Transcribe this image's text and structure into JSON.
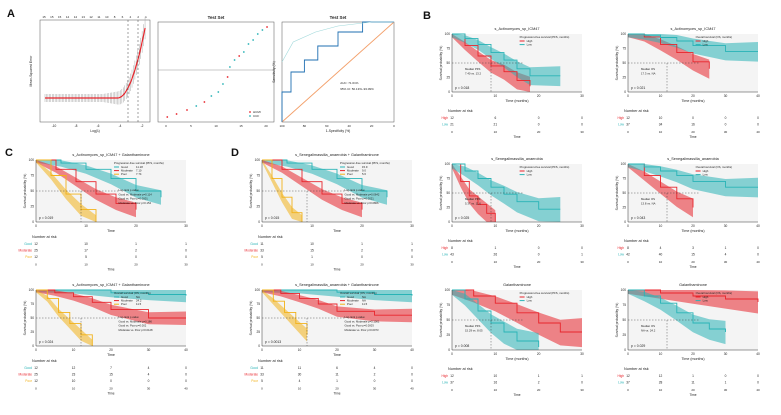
{
  "panel_labels": {
    "a": "A",
    "b": "B",
    "c": "C",
    "d": "D"
  },
  "panel_a": {
    "lasso_xlabel": "Log(λ)",
    "lasso_ylabel": "Mean-Squared Error",
    "lasso_top_ticks": [
      "15",
      "15",
      "15",
      "14",
      "14",
      "13",
      "12",
      "11",
      "10",
      "8",
      "6",
      "4",
      "2",
      "1"
    ],
    "lasso_x_ticks": [
      "-10",
      "-8",
      "-6",
      "-4",
      "-2"
    ],
    "test_title_1": "Test Set",
    "test_title_2": "Test Set",
    "legend_hcmi": "HCMI",
    "legend_ccf": "CCF",
    "roc_xlabel": "1-Specificity (%)",
    "roc_ylabel": "Sensitivity (%)",
    "roc_auc": "AUC: 71.61%",
    "roc_ci": "95% CI: 50.13%–93.09%",
    "roc_x_ticks": [
      "100",
      "80",
      "60",
      "40",
      "20",
      "0"
    ]
  },
  "km_common": {
    "y_label": "Survival probability (%)",
    "x_label": "Time (months)",
    "x_label_short": "Time",
    "number_at_risk": "Number at risk",
    "y_ticks": [
      "100",
      "75",
      "50",
      "25",
      "0"
    ]
  },
  "chart_data": [
    {
      "type": "line",
      "panel": "B",
      "title": "s_Actinomyces_sp_ICM47",
      "legend_title": "Progression-free survival (PFS, months)",
      "series": [
        {
          "name": "High",
          "color": "#e8252c",
          "x": [
            0,
            3,
            6,
            9,
            12,
            15,
            18
          ],
          "values": [
            100,
            80,
            62,
            45,
            35,
            20,
            10
          ]
        },
        {
          "name": "Low",
          "color": "#29b3b6",
          "x": [
            0,
            3,
            6,
            9,
            12,
            15,
            18,
            25
          ],
          "values": [
            100,
            92,
            82,
            68,
            55,
            40,
            28,
            28
          ]
        }
      ],
      "median_text": "Median PFS\n7.40 vs. 13.2",
      "p_value": "p = 0.018",
      "risk_table": {
        "groups": [
          "High",
          "Low"
        ],
        "times": [
          "0",
          "10",
          "20",
          "30"
        ],
        "values": [
          [
            "12",
            "6",
            "0",
            "0"
          ],
          [
            "21",
            "21",
            "0",
            "0"
          ]
        ]
      }
    },
    {
      "type": "line",
      "panel": "B",
      "title": "s_Actinomyces_sp_ICM47",
      "legend_title": "Overall survival (OS, months)",
      "series": [
        {
          "name": "High",
          "color": "#e8252c",
          "x": [
            0,
            5,
            10,
            15,
            20,
            25
          ],
          "values": [
            100,
            95,
            82,
            68,
            52,
            40
          ]
        },
        {
          "name": "Low",
          "color": "#29b3b6",
          "x": [
            0,
            5,
            10,
            15,
            20,
            30,
            40
          ],
          "values": [
            100,
            98,
            94,
            88,
            80,
            70,
            70
          ]
        }
      ],
      "median_text": "Median OS\n17.3 vs. NA",
      "p_value": "p = 0.021",
      "risk_table": {
        "groups": [
          "High",
          "Low"
        ],
        "times": [
          "0",
          "10",
          "20",
          "30",
          "40"
        ],
        "values": [
          [
            "12",
            "10",
            "0",
            "0",
            "0"
          ],
          [
            "37",
            "34",
            "16",
            "0",
            "0"
          ]
        ]
      }
    },
    {
      "type": "line",
      "panel": "B",
      "title": "s_Senegalimassilia_anaerobia",
      "legend_title": "Progression-free survival (PFS, months)",
      "series": [
        {
          "name": "High",
          "color": "#e8252c",
          "x": [
            0,
            2,
            4,
            6,
            8,
            10
          ],
          "values": [
            100,
            70,
            45,
            30,
            15,
            0
          ]
        },
        {
          "name": "Low",
          "color": "#29b3b6",
          "x": [
            0,
            3,
            6,
            9,
            12,
            15,
            20,
            25
          ],
          "values": [
            100,
            88,
            75,
            60,
            48,
            35,
            22,
            22
          ]
        }
      ],
      "median_text": "Median PFS\n5.37 vs. 11.6",
      "p_value": "p = 0.025",
      "risk_table": {
        "groups": [
          "High",
          "Low"
        ],
        "times": [
          "0",
          "10",
          "20",
          "30"
        ],
        "values": [
          [
            "8",
            "1",
            "0",
            "0"
          ],
          [
            "43",
            "26",
            "0",
            "1"
          ]
        ]
      }
    },
    {
      "type": "line",
      "panel": "B",
      "title": "s_Senegalimassilia_anaerobia",
      "legend_title": "Overall survival (OS, months)",
      "series": [
        {
          "name": "High",
          "color": "#e8252c",
          "x": [
            0,
            5,
            10,
            15,
            20
          ],
          "values": [
            100,
            80,
            60,
            40,
            25
          ]
        },
        {
          "name": "Low",
          "color": "#29b3b6",
          "x": [
            0,
            5,
            10,
            15,
            20,
            30,
            40
          ],
          "values": [
            100,
            95,
            88,
            80,
            70,
            60,
            60
          ]
        }
      ],
      "median_text": "Median OS\n13.8 vs. NA",
      "p_value": "p = 0.043",
      "risk_table": {
        "groups": [
          "High",
          "Low"
        ],
        "times": [
          "0",
          "10",
          "20",
          "30",
          "40"
        ],
        "values": [
          [
            "8",
            "4",
            "3",
            "1",
            "0"
          ],
          [
            "42",
            "40",
            "15",
            "4",
            "0"
          ]
        ]
      }
    },
    {
      "type": "line",
      "panel": "B",
      "title": "Galanthaminone",
      "legend_title": "Progression-free survival (PFS, months)",
      "series": [
        {
          "name": "High",
          "color": "#e8252c",
          "x": [
            0,
            5,
            10,
            15,
            20,
            25,
            30
          ],
          "values": [
            100,
            90,
            78,
            62,
            45,
            30,
            30
          ]
        },
        {
          "name": "Low",
          "color": "#29b3b6",
          "x": [
            0,
            3,
            6,
            9,
            12,
            15,
            20
          ],
          "values": [
            100,
            85,
            65,
            45,
            30,
            15,
            5
          ]
        }
      ],
      "median_text": "Median PFS\n15.29 vs. 8.05",
      "p_value": "p = 0.008",
      "risk_table": {
        "groups": [
          "High",
          "Low"
        ],
        "times": [
          "0",
          "10",
          "20",
          "30"
        ],
        "values": [
          [
            "12",
            "10",
            "1",
            "1"
          ],
          [
            "37",
            "16",
            "2",
            "0"
          ]
        ]
      }
    },
    {
      "type": "line",
      "panel": "B",
      "title": "Galanthaminone",
      "legend_title": "Overall survival (OS, months)",
      "series": [
        {
          "name": "High",
          "color": "#e8252c",
          "x": [
            0,
            10,
            20,
            30,
            40
          ],
          "values": [
            100,
            95,
            90,
            85,
            80
          ]
        },
        {
          "name": "Low",
          "color": "#29b3b6",
          "x": [
            0,
            5,
            10,
            15,
            20,
            25,
            30
          ],
          "values": [
            100,
            90,
            78,
            62,
            45,
            35,
            30
          ]
        }
      ],
      "median_text": "Median OS\nNA vs. 24.2",
      "p_value": "p = 0.029",
      "risk_table": {
        "groups": [
          "High",
          "Low"
        ],
        "times": [
          "0",
          "10",
          "20",
          "30",
          "40"
        ],
        "values": [
          [
            "12",
            "12",
            "1",
            "0",
            "0"
          ],
          [
            "37",
            "28",
            "11",
            "1",
            "0"
          ]
        ]
      }
    },
    {
      "type": "line",
      "panel": "C",
      "title": "s_Actinomyces_sp_ICM47 + Galanthaminone",
      "legend_title": "Progression-free survival (PFS, months)",
      "series": [
        {
          "name": "Good",
          "color": "#29b3b6",
          "x": [
            0,
            5,
            10,
            15,
            20,
            25
          ],
          "values": [
            100,
            95,
            85,
            70,
            50,
            40
          ]
        },
        {
          "name": "Moderate",
          "color": "#e8252c",
          "x": [
            0,
            4,
            8,
            12,
            16,
            20
          ],
          "values": [
            100,
            85,
            65,
            45,
            30,
            20
          ]
        },
        {
          "name": "Poor",
          "color": "#f2b21a",
          "x": [
            0,
            3,
            6,
            9,
            12
          ],
          "values": [
            100,
            75,
            45,
            20,
            0
          ]
        }
      ],
      "legend_values": [
        "11.18",
        "7.10",
        "7.74"
      ],
      "logrank_text": "Log-rank p value:\nGood vs. Moderate p=0.114\nGood vs. Poor p=0.0001\nModerate vs. Poor p=0.154",
      "p_value": "p = 0.019",
      "risk_table": {
        "groups": [
          "Good",
          "Moderate",
          "Poor"
        ],
        "times": [
          "0",
          "10",
          "20",
          "30"
        ],
        "values": [
          [
            "12",
            "10",
            "1",
            "1"
          ],
          [
            "25",
            "17",
            "2",
            "0"
          ],
          [
            "12",
            "5",
            "0",
            "0"
          ]
        ]
      }
    },
    {
      "type": "line",
      "panel": "C",
      "title": "s_Actinomyces_sp_ICM47 + Galanthaminone",
      "legend_title": "Overall survival (OS, months)",
      "series": [
        {
          "name": "Good",
          "color": "#29b3b6",
          "x": [
            0,
            10,
            20,
            30,
            40
          ],
          "values": [
            100,
            100,
            95,
            92,
            90
          ]
        },
        {
          "name": "Moderate",
          "color": "#e8252c",
          "x": [
            0,
            5,
            10,
            15,
            20,
            30,
            40
          ],
          "values": [
            100,
            95,
            88,
            78,
            65,
            50,
            50
          ]
        },
        {
          "name": "Poor",
          "color": "#f2b21a",
          "x": [
            0,
            3,
            6,
            9,
            12,
            15
          ],
          "values": [
            100,
            85,
            60,
            40,
            20,
            0
          ]
        }
      ],
      "legend_values": [
        "NA",
        "24.2",
        "11.5"
      ],
      "logrank_text": "Log-rank p value:\nGood vs. Moderate p=0.186\nGood vs. Poor p=0.002\nModerate vs. Poor p=0.0128",
      "p_value": "p = 0.024",
      "risk_table": {
        "groups": [
          "Good",
          "Moderate",
          "Poor"
        ],
        "times": [
          "0",
          "10",
          "20",
          "30",
          "40"
        ],
        "values": [
          [
            "12",
            "12",
            "7",
            "4",
            "0"
          ],
          [
            "25",
            "23",
            "15",
            "4",
            "0"
          ],
          [
            "12",
            "10",
            "0",
            "0",
            "0"
          ]
        ]
      }
    },
    {
      "type": "line",
      "panel": "D",
      "title": "s_Senegalimassilia_anaerobia + Galanthaminone",
      "legend_title": "Progression-free survival (PFS, months)",
      "series": [
        {
          "name": "Good",
          "color": "#29b3b6",
          "x": [
            0,
            5,
            10,
            15,
            20,
            25
          ],
          "values": [
            100,
            95,
            85,
            70,
            50,
            40
          ]
        },
        {
          "name": "Moderate",
          "color": "#e8252c",
          "x": [
            0,
            4,
            8,
            12,
            16,
            20
          ],
          "values": [
            100,
            85,
            65,
            45,
            30,
            20
          ]
        },
        {
          "name": "Poor",
          "color": "#f2b21a",
          "x": [
            0,
            2,
            4,
            6,
            8
          ],
          "values": [
            100,
            70,
            40,
            15,
            0
          ]
        }
      ],
      "legend_values": [
        "15.9",
        "9.0",
        "5.6"
      ],
      "logrank_text": "Log-rank p value:\nGood vs. Moderate p=0.0642\nGood vs. Poor p=0.0021\nModerate vs. Poor p=0.0806",
      "p_value": "p = 0.015",
      "risk_table": {
        "groups": [
          "Good",
          "Moderate",
          "Poor"
        ],
        "times": [
          "0",
          "10",
          "20",
          "30"
        ],
        "values": [
          [
            "11",
            "10",
            "1",
            "1"
          ],
          [
            "33",
            "15",
            "2",
            "0"
          ],
          [
            "5",
            "1",
            "0",
            "0"
          ]
        ]
      }
    },
    {
      "type": "line",
      "panel": "D",
      "title": "s_Senegalimassilia_anaerobia + Galanthaminone",
      "legend_title": "Overall survival (OS, months)",
      "series": [
        {
          "name": "Good",
          "color": "#29b3b6",
          "x": [
            0,
            10,
            20,
            30,
            40
          ],
          "values": [
            100,
            100,
            96,
            92,
            90
          ]
        },
        {
          "name": "Moderate",
          "color": "#e8252c",
          "x": [
            0,
            5,
            10,
            15,
            20,
            30,
            40
          ],
          "values": [
            100,
            94,
            85,
            75,
            62,
            55,
            55
          ]
        },
        {
          "name": "Poor",
          "color": "#f2b21a",
          "x": [
            0,
            3,
            6,
            9,
            12
          ],
          "values": [
            100,
            80,
            60,
            40,
            20
          ]
        }
      ],
      "legend_values": [
        "NA",
        "NA",
        "11.5"
      ],
      "logrank_text": "Log-rank p value:\nGood vs. Moderate p=0.1001\nGood vs. Poor p=0.0003\nModerate vs. Poor p=0.0073",
      "p_value": "p = 0.0013",
      "risk_table": {
        "groups": [
          "Good",
          "Moderate",
          "Poor"
        ],
        "times": [
          "0",
          "10",
          "20",
          "30",
          "40"
        ],
        "values": [
          [
            "11",
            "11",
            "6",
            "4",
            "0"
          ],
          [
            "33",
            "30",
            "11",
            "2",
            "0"
          ],
          [
            "5",
            "4",
            "1",
            "0",
            "0"
          ]
        ]
      }
    }
  ]
}
